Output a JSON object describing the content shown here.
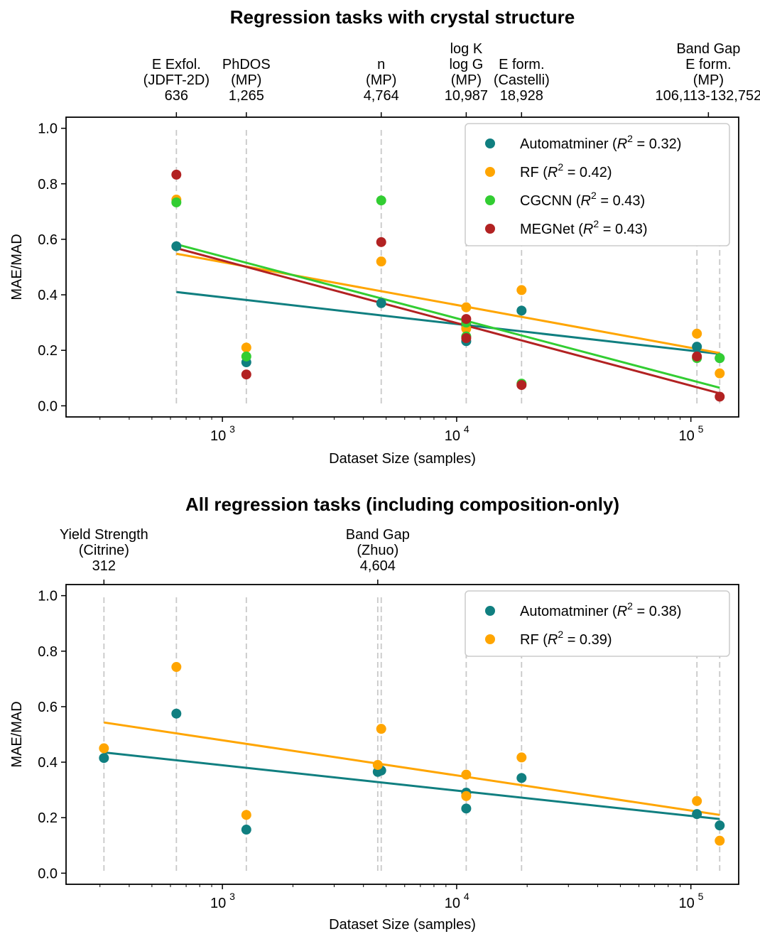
{
  "chart_data": [
    {
      "type": "scatter",
      "title": "Regression tasks with crystal structure",
      "xlabel": "Dataset Size (samples)",
      "ylabel": "MAE/MAD",
      "xscale": "log",
      "xlim": [
        215,
        160000
      ],
      "ylim": [
        -0.04,
        1.04
      ],
      "x_ticks": [
        {
          "value": 1000,
          "label": "10",
          "exp": "3"
        },
        {
          "value": 10000,
          "label": "10",
          "exp": "4"
        },
        {
          "value": 100000,
          "label": "10",
          "exp": "5"
        }
      ],
      "y_ticks": [
        "0.0",
        "0.2",
        "0.4",
        "0.6",
        "0.8",
        "1.0"
      ],
      "grid": "vertical dashed lines at dataset sizes",
      "legend": "top-right",
      "task_lines": [
        636,
        1265,
        4764,
        10987,
        18928,
        106113,
        132752
      ],
      "top_labels": [
        {
          "x": 636,
          "lines": [
            "E Exfol.",
            "(JDFT-2D)",
            "636"
          ]
        },
        {
          "x": 1265,
          "lines": [
            "PhDOS",
            "(MP)",
            "1,265"
          ]
        },
        {
          "x": 4764,
          "lines": [
            "n",
            "(MP)",
            "4,764"
          ]
        },
        {
          "x": 10987,
          "lines": [
            "log K",
            "log G",
            "(MP)",
            "10,987"
          ]
        },
        {
          "x": 18928,
          "lines": [
            "E form.",
            "(Castelli)",
            "18,928"
          ]
        },
        {
          "x": 118800,
          "lines": [
            "Band Gap",
            "E form.",
            "(MP)",
            "106,113-132,752"
          ]
        }
      ],
      "series": [
        {
          "name": "Automatminer",
          "r2": "0.32",
          "color": "#107f80",
          "points": [
            [
              636,
              0.575
            ],
            [
              1265,
              0.157
            ],
            [
              4764,
              0.37
            ],
            [
              10987,
              0.29
            ],
            [
              10987,
              0.233
            ],
            [
              18928,
              0.343
            ],
            [
              106113,
              0.213
            ],
            [
              132752,
              0.172
            ]
          ],
          "fit": [
            [
              636,
              0.41
            ],
            [
              132752,
              0.187
            ]
          ]
        },
        {
          "name": "RF",
          "r2": "0.42",
          "color": "#ffa500",
          "points": [
            [
              636,
              0.743
            ],
            [
              1265,
              0.21
            ],
            [
              4764,
              0.52
            ],
            [
              10987,
              0.355
            ],
            [
              10987,
              0.278
            ],
            [
              18928,
              0.417
            ],
            [
              106113,
              0.26
            ],
            [
              132752,
              0.117
            ]
          ],
          "fit": [
            [
              636,
              0.548
            ],
            [
              132752,
              0.19
            ]
          ]
        },
        {
          "name": "CGCNN",
          "r2": "0.43",
          "color": "#32cd32",
          "points": [
            [
              636,
              0.733
            ],
            [
              1265,
              0.178
            ],
            [
              4764,
              0.74
            ],
            [
              10987,
              0.3
            ],
            [
              10987,
              0.25
            ],
            [
              18928,
              0.08
            ],
            [
              106113,
              0.172
            ],
            [
              132752,
              0.172
            ]
          ],
          "fit": [
            [
              636,
              0.582
            ],
            [
              132752,
              0.065
            ]
          ]
        },
        {
          "name": "MEGNet",
          "r2": "0.43",
          "color": "#b22222",
          "points": [
            [
              636,
              0.833
            ],
            [
              1265,
              0.113
            ],
            [
              4764,
              0.59
            ],
            [
              10987,
              0.313
            ],
            [
              10987,
              0.244
            ],
            [
              18928,
              0.075
            ],
            [
              106113,
              0.178
            ],
            [
              132752,
              0.033
            ]
          ],
          "fit": [
            [
              636,
              0.568
            ],
            [
              132752,
              0.045
            ]
          ]
        }
      ]
    },
    {
      "type": "scatter",
      "title": "All regression tasks (including composition-only)",
      "xlabel": "Dataset Size (samples)",
      "ylabel": "MAE/MAD",
      "xscale": "log",
      "xlim": [
        215,
        160000
      ],
      "ylim": [
        -0.04,
        1.04
      ],
      "x_ticks": [
        {
          "value": 1000,
          "label": "10",
          "exp": "3"
        },
        {
          "value": 10000,
          "label": "10",
          "exp": "4"
        },
        {
          "value": 100000,
          "label": "10",
          "exp": "5"
        }
      ],
      "y_ticks": [
        "0.0",
        "0.2",
        "0.4",
        "0.6",
        "0.8",
        "1.0"
      ],
      "grid": "vertical dashed lines at dataset sizes",
      "legend": "top-right",
      "task_lines": [
        312,
        636,
        1265,
        4604,
        4764,
        10987,
        18928,
        106113,
        132752
      ],
      "top_labels": [
        {
          "x": 312,
          "lines": [
            "Yield Strength",
            "(Citrine)",
            "312"
          ]
        },
        {
          "x": 4604,
          "lines": [
            "Band Gap",
            "(Zhuo)",
            "4,604"
          ]
        }
      ],
      "series": [
        {
          "name": "Automatminer",
          "r2": "0.38",
          "color": "#107f80",
          "points": [
            [
              312,
              0.415
            ],
            [
              636,
              0.575
            ],
            [
              1265,
              0.157
            ],
            [
              4604,
              0.365
            ],
            [
              4764,
              0.37
            ],
            [
              10987,
              0.29
            ],
            [
              10987,
              0.233
            ],
            [
              18928,
              0.343
            ],
            [
              106113,
              0.213
            ],
            [
              132752,
              0.172
            ]
          ],
          "fit": [
            [
              312,
              0.435
            ],
            [
              132752,
              0.195
            ]
          ]
        },
        {
          "name": "RF",
          "r2": "0.39",
          "color": "#ffa500",
          "points": [
            [
              312,
              0.45
            ],
            [
              636,
              0.743
            ],
            [
              1265,
              0.21
            ],
            [
              4604,
              0.39
            ],
            [
              4764,
              0.52
            ],
            [
              10987,
              0.355
            ],
            [
              10987,
              0.278
            ],
            [
              18928,
              0.417
            ],
            [
              106113,
              0.26
            ],
            [
              132752,
              0.117
            ]
          ],
          "fit": [
            [
              312,
              0.543
            ],
            [
              132752,
              0.21
            ]
          ]
        }
      ]
    }
  ]
}
